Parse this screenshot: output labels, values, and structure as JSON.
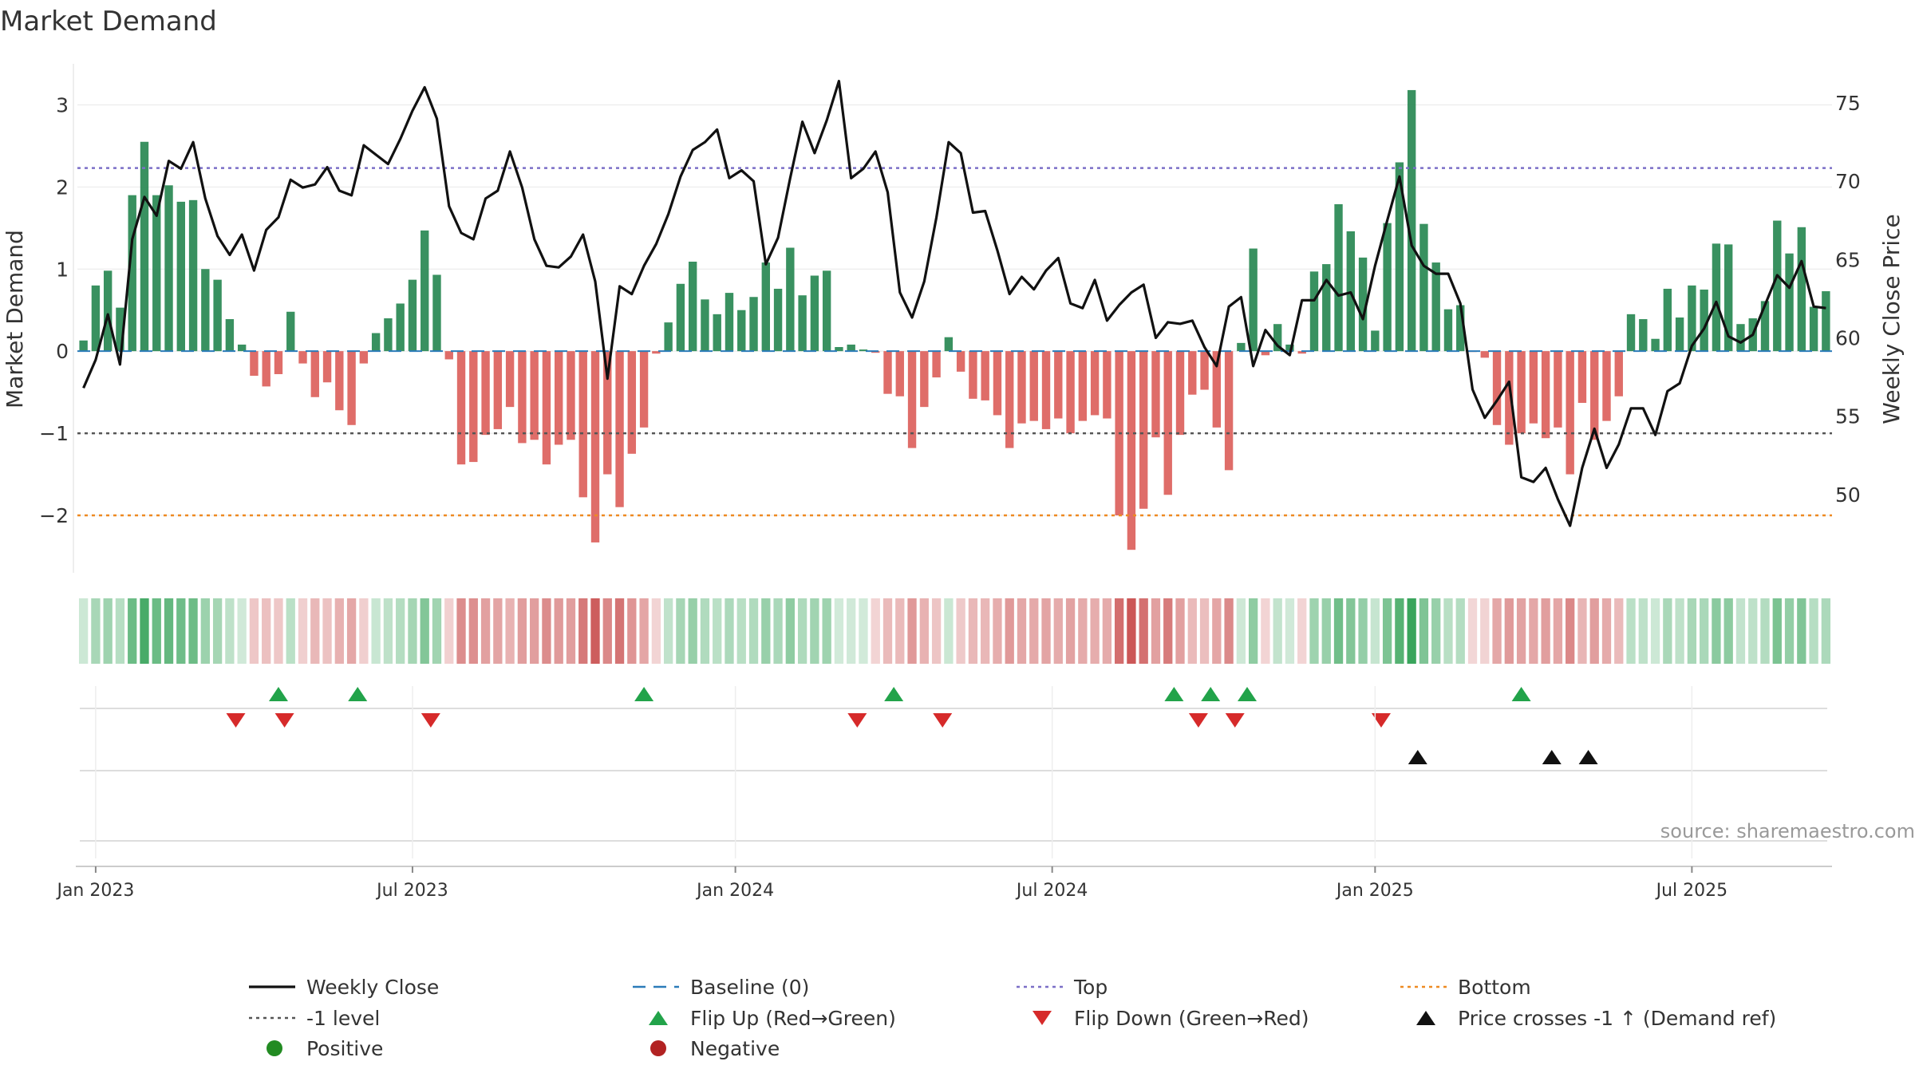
{
  "chart_data": {
    "type": "bar",
    "title": "Market Demand",
    "ylabel": "Market Demand",
    "y2label": "Weekly Close Price",
    "ylim": [
      -2.7,
      3.5
    ],
    "y2lim": [
      45.0,
      77.5
    ],
    "y_ticks": [
      3,
      2,
      1,
      0,
      -1,
      -2
    ],
    "y_tick_labels": [
      "3",
      "2",
      "1",
      "0",
      "−1",
      "−2"
    ],
    "y2_ticks": [
      75,
      70,
      65,
      60,
      55,
      50
    ],
    "y2_tick_labels": [
      "75",
      "70",
      "65",
      "60",
      "55",
      "50"
    ],
    "x_tick_labels": [
      "Jan 2023",
      "Jul 2023",
      "Jan 2024",
      "Jul 2024",
      "Jan 2025",
      "Jul 2025"
    ],
    "x_tick_weeks": [
      1,
      27,
      53.5,
      79.5,
      106,
      132
    ],
    "reference_lines": {
      "top": 2.23,
      "minus_one": -1,
      "bottom": -2.0,
      "baseline": 0
    },
    "colors": {
      "positive": "#2e8b57",
      "negative": "#d9534f",
      "close": "#111111",
      "top": "#7b6fc7",
      "minus_one": "#555555",
      "bottom": "#ee8a22",
      "baseline": "#2b7bb9",
      "flip_up": "#22a34a",
      "flip_down": "#d62a2a",
      "cross": "#111111",
      "positive_dot": "#228b22",
      "negative_dot": "#b22222"
    },
    "demand": [
      0.13,
      0.8,
      0.98,
      0.53,
      1.9,
      2.55,
      1.9,
      2.02,
      1.82,
      1.84,
      1.0,
      0.87,
      0.39,
      0.08,
      -0.3,
      -0.43,
      -0.28,
      0.48,
      -0.15,
      -0.56,
      -0.38,
      -0.72,
      -0.9,
      -0.15,
      0.22,
      0.4,
      0.58,
      0.87,
      1.47,
      0.93,
      -0.1,
      -1.38,
      -1.35,
      -1.02,
      -0.95,
      -0.68,
      -1.12,
      -1.08,
      -1.38,
      -1.14,
      -1.08,
      -1.78,
      -2.33,
      -1.5,
      -1.9,
      -1.25,
      -0.93,
      -0.03,
      0.35,
      0.82,
      1.09,
      0.63,
      0.45,
      0.71,
      0.5,
      0.66,
      1.08,
      0.76,
      1.26,
      0.68,
      0.92,
      0.98,
      0.05,
      0.08,
      0.02,
      -0.02,
      -0.52,
      -0.55,
      -1.18,
      -0.68,
      -0.32,
      0.17,
      -0.25,
      -0.58,
      -0.6,
      -0.78,
      -1.18,
      -0.88,
      -0.85,
      -0.95,
      -0.82,
      -1.0,
      -0.85,
      -0.78,
      -0.82,
      -2.0,
      -2.42,
      -1.92,
      -1.05,
      -1.75,
      -1.02,
      -0.53,
      -0.47,
      -0.93,
      -1.45,
      0.1,
      1.25,
      -0.05,
      0.33,
      0.08,
      -0.03,
      0.97,
      1.06,
      1.79,
      1.46,
      1.14,
      0.25,
      1.56,
      2.3,
      3.18,
      1.55,
      1.08,
      0.51,
      0.56,
      -0.01,
      -0.08,
      -0.9,
      -1.14,
      -1.0,
      -0.88,
      -1.06,
      -0.93,
      -1.5,
      -0.63,
      -1.08,
      -0.85,
      -0.55,
      0.45,
      0.39,
      0.15,
      0.76,
      0.41,
      0.8,
      0.75,
      1.31,
      1.3,
      0.33,
      0.4,
      0.61,
      1.59,
      1.19,
      1.51,
      0.54,
      0.73
    ],
    "close": [
      56.8,
      58.6,
      61.5,
      58.3,
      66.3,
      69.0,
      67.8,
      71.3,
      70.8,
      72.5,
      68.9,
      66.5,
      65.3,
      66.6,
      64.3,
      66.9,
      67.7,
      70.1,
      69.6,
      69.8,
      70.9,
      69.4,
      69.1,
      72.3,
      71.7,
      71.1,
      72.7,
      74.5,
      76.0,
      74.0,
      68.4,
      66.7,
      66.3,
      68.9,
      69.4,
      71.9,
      69.6,
      66.3,
      64.6,
      64.5,
      65.2,
      66.6,
      63.6,
      57.4,
      63.3,
      62.8,
      64.6,
      66.0,
      67.9,
      70.3,
      72.0,
      72.5,
      73.3,
      70.2,
      70.7,
      70.0,
      64.7,
      66.4,
      70.2,
      73.8,
      71.8,
      73.9,
      76.4,
      70.2,
      70.8,
      71.9,
      69.3,
      62.9,
      61.3,
      63.6,
      67.7,
      72.5,
      71.8,
      68.0,
      68.1,
      65.6,
      62.8,
      63.9,
      63.1,
      64.3,
      65.1,
      62.2,
      61.9,
      63.7,
      61.1,
      62.1,
      62.9,
      63.4,
      60.0,
      61.0,
      60.9,
      61.1,
      59.4,
      58.2,
      62.0,
      62.6,
      58.2,
      60.5,
      59.5,
      58.9,
      62.4,
      62.4,
      63.7,
      62.7,
      62.9,
      61.2,
      64.6,
      67.5,
      70.3,
      65.9,
      64.6,
      64.1,
      64.1,
      62.2,
      56.7,
      54.9,
      56.0,
      57.2,
      51.1,
      50.8,
      51.7,
      49.7,
      48.0,
      51.7,
      54.2,
      51.7,
      53.2,
      55.5,
      55.5,
      53.8,
      56.6,
      57.1,
      59.5,
      60.6,
      62.3,
      60.1,
      59.7,
      60.2,
      62.1,
      64.0,
      63.2,
      64.9,
      62.0,
      61.9
    ],
    "flip_up_weeks": [
      16,
      22.5,
      46,
      66.5,
      89.5,
      92.5,
      95.5,
      118
    ],
    "flip_down_weeks": [
      12.5,
      16.5,
      28.5,
      63.5,
      70.5,
      91.5,
      94.5,
      106.5
    ],
    "cross_weeks": [
      109.5,
      120.5,
      123.5
    ],
    "legend": [
      {
        "label": "Weekly Close",
        "kind": "solid-line"
      },
      {
        "label": "Baseline (0)",
        "kind": "dashed-line"
      },
      {
        "label": "Top",
        "kind": "dotted-line-purple"
      },
      {
        "label": "Bottom",
        "kind": "dotted-line-orange"
      },
      {
        "label": "-1 level",
        "kind": "dotted-line-gray"
      },
      {
        "label": "Flip Up (Red→Green)",
        "kind": "triangle-up-green"
      },
      {
        "label": "Flip Down (Green→Red)",
        "kind": "triangle-down-red"
      },
      {
        "label": "Price crosses -1 ↑ (Demand ref)",
        "kind": "triangle-up-black"
      },
      {
        "label": "Positive",
        "kind": "dot-green"
      },
      {
        "label": "Negative",
        "kind": "dot-red"
      }
    ],
    "source": "source: sharemaestro.com"
  }
}
